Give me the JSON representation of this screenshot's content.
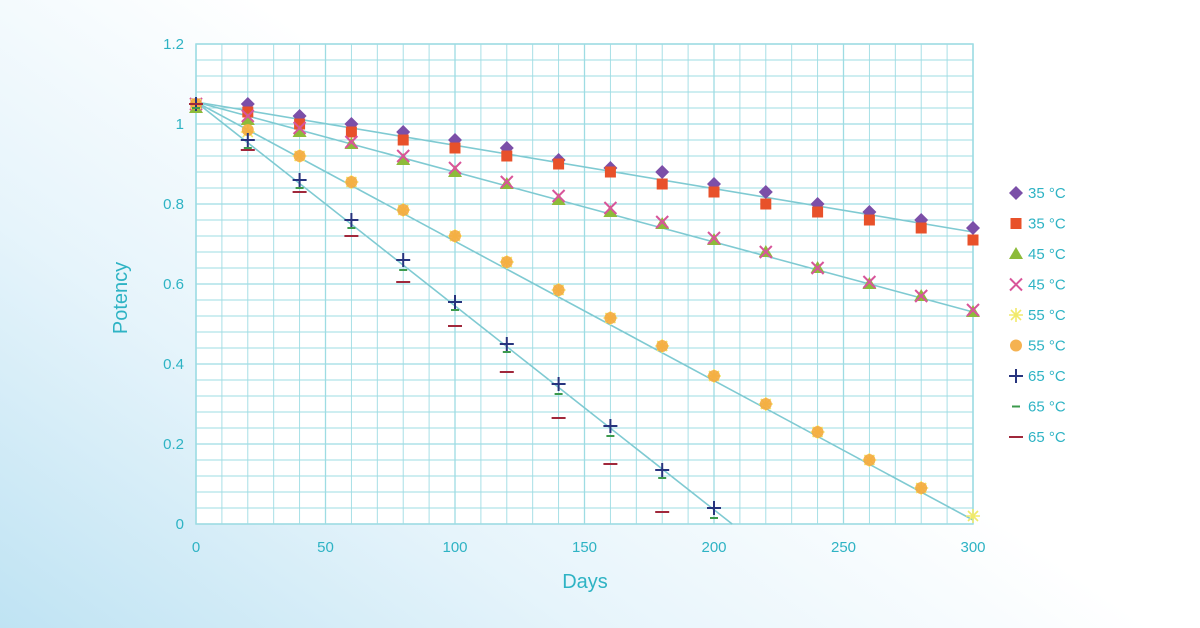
{
  "chart_data": {
    "type": "scatter",
    "xlabel": "Days",
    "ylabel": "Potency",
    "xlim": [
      0,
      300
    ],
    "ylim": [
      0,
      1.2
    ],
    "x_ticks": [
      0,
      50,
      100,
      150,
      200,
      250,
      300
    ],
    "x_tick_labels": [
      "0",
      "50",
      "100",
      "150",
      "200",
      "250",
      "300"
    ],
    "y_ticks": [
      0,
      0.2,
      0.4,
      0.6,
      0.8,
      1.0,
      1.2
    ],
    "y_tick_labels": [
      "0",
      "0.2",
      "0.4",
      "0.6",
      "0.8",
      "1",
      "1.2"
    ],
    "grid": true,
    "legend_position": "right",
    "series": [
      {
        "name": "35 °C",
        "marker": "diamond",
        "color": "#7b4fa8",
        "x": [
          0,
          20,
          40,
          60,
          80,
          100,
          120,
          140,
          160,
          180,
          200,
          220,
          240,
          260,
          280,
          300
        ],
        "y": [
          1.05,
          1.05,
          1.02,
          1.0,
          0.98,
          0.96,
          0.94,
          0.91,
          0.89,
          0.88,
          0.85,
          0.83,
          0.8,
          0.78,
          0.76,
          0.74
        ]
      },
      {
        "name": "35 °C",
        "marker": "square",
        "color": "#e8512a",
        "x": [
          0,
          20,
          40,
          60,
          80,
          100,
          120,
          140,
          160,
          180,
          200,
          220,
          240,
          260,
          280,
          300
        ],
        "y": [
          1.05,
          1.03,
          1.0,
          0.98,
          0.96,
          0.94,
          0.92,
          0.9,
          0.88,
          0.85,
          0.83,
          0.8,
          0.78,
          0.76,
          0.74,
          0.71
        ]
      },
      {
        "name": "45 °C",
        "marker": "triangle",
        "color": "#8dbb3a",
        "x": [
          0,
          20,
          40,
          60,
          80,
          100,
          120,
          140,
          160,
          180,
          200,
          220,
          240,
          260,
          280,
          300
        ],
        "y": [
          1.04,
          1.01,
          0.98,
          0.95,
          0.91,
          0.88,
          0.85,
          0.81,
          0.78,
          0.75,
          0.71,
          0.68,
          0.64,
          0.6,
          0.57,
          0.53
        ]
      },
      {
        "name": "45 °C",
        "marker": "x",
        "color": "#d8559a",
        "x": [
          0,
          20,
          40,
          60,
          80,
          100,
          120,
          140,
          160,
          180,
          200,
          220,
          240,
          260,
          280,
          300
        ],
        "y": [
          1.05,
          1.02,
          0.99,
          0.955,
          0.92,
          0.89,
          0.855,
          0.82,
          0.79,
          0.755,
          0.715,
          0.68,
          0.64,
          0.605,
          0.57,
          0.535
        ]
      },
      {
        "name": "55 °C",
        "marker": "asterisk",
        "color": "#f1ea6b",
        "x": [
          0,
          20,
          40,
          60,
          80,
          100,
          120,
          140,
          160,
          180,
          200,
          220,
          240,
          260,
          280,
          300
        ],
        "y": [
          1.05,
          0.98,
          0.92,
          0.855,
          0.785,
          0.72,
          0.655,
          0.585,
          0.515,
          0.445,
          0.37,
          0.3,
          0.23,
          0.16,
          0.09,
          0.02
        ]
      },
      {
        "name": "55 °C",
        "marker": "circle",
        "color": "#f4aa3e",
        "x": [
          0,
          20,
          40,
          60,
          80,
          100,
          120,
          140,
          160,
          180,
          200,
          220,
          240,
          260,
          280
        ],
        "y": [
          1.05,
          0.985,
          0.92,
          0.855,
          0.785,
          0.72,
          0.655,
          0.585,
          0.515,
          0.445,
          0.37,
          0.3,
          0.23,
          0.16,
          0.09
        ]
      },
      {
        "name": "65 °C",
        "marker": "plus",
        "color": "#27347e",
        "x": [
          0,
          20,
          40,
          60,
          80,
          100,
          120,
          140,
          160,
          180,
          200
        ],
        "y": [
          1.05,
          0.96,
          0.86,
          0.76,
          0.66,
          0.555,
          0.45,
          0.35,
          0.245,
          0.135,
          0.04
        ]
      },
      {
        "name": "65 °C",
        "marker": "dash",
        "color": "#3c9a4c",
        "x": [
          0,
          20,
          40,
          60,
          80,
          100,
          120,
          140,
          160,
          180,
          200
        ],
        "y": [
          1.04,
          0.94,
          0.84,
          0.74,
          0.635,
          0.535,
          0.43,
          0.325,
          0.22,
          0.115,
          0.015
        ]
      },
      {
        "name": "65 °C",
        "marker": "line",
        "color": "#a0283b",
        "x": [
          0,
          20,
          40,
          60,
          80,
          100,
          120,
          140,
          160,
          180
        ],
        "y": [
          1.05,
          0.935,
          0.83,
          0.72,
          0.605,
          0.495,
          0.38,
          0.265,
          0.15,
          0.03
        ]
      }
    ],
    "trendlines": [
      {
        "name": "35 °C trend",
        "x": [
          0,
          300
        ],
        "y": [
          1.055,
          0.73
        ]
      },
      {
        "name": "45 °C trend",
        "x": [
          0,
          300
        ],
        "y": [
          1.055,
          0.53
        ]
      },
      {
        "name": "55 °C trend",
        "x": [
          0,
          300
        ],
        "y": [
          1.055,
          0.01
        ]
      },
      {
        "name": "65 °C trend",
        "x": [
          0,
          207
        ],
        "y": [
          1.055,
          0.0
        ]
      }
    ]
  },
  "colors": {
    "plot_background": "#ffffff",
    "grid": "#9edce3",
    "axis_text": "#2eb3c4",
    "trendline": "#7fcad2"
  }
}
